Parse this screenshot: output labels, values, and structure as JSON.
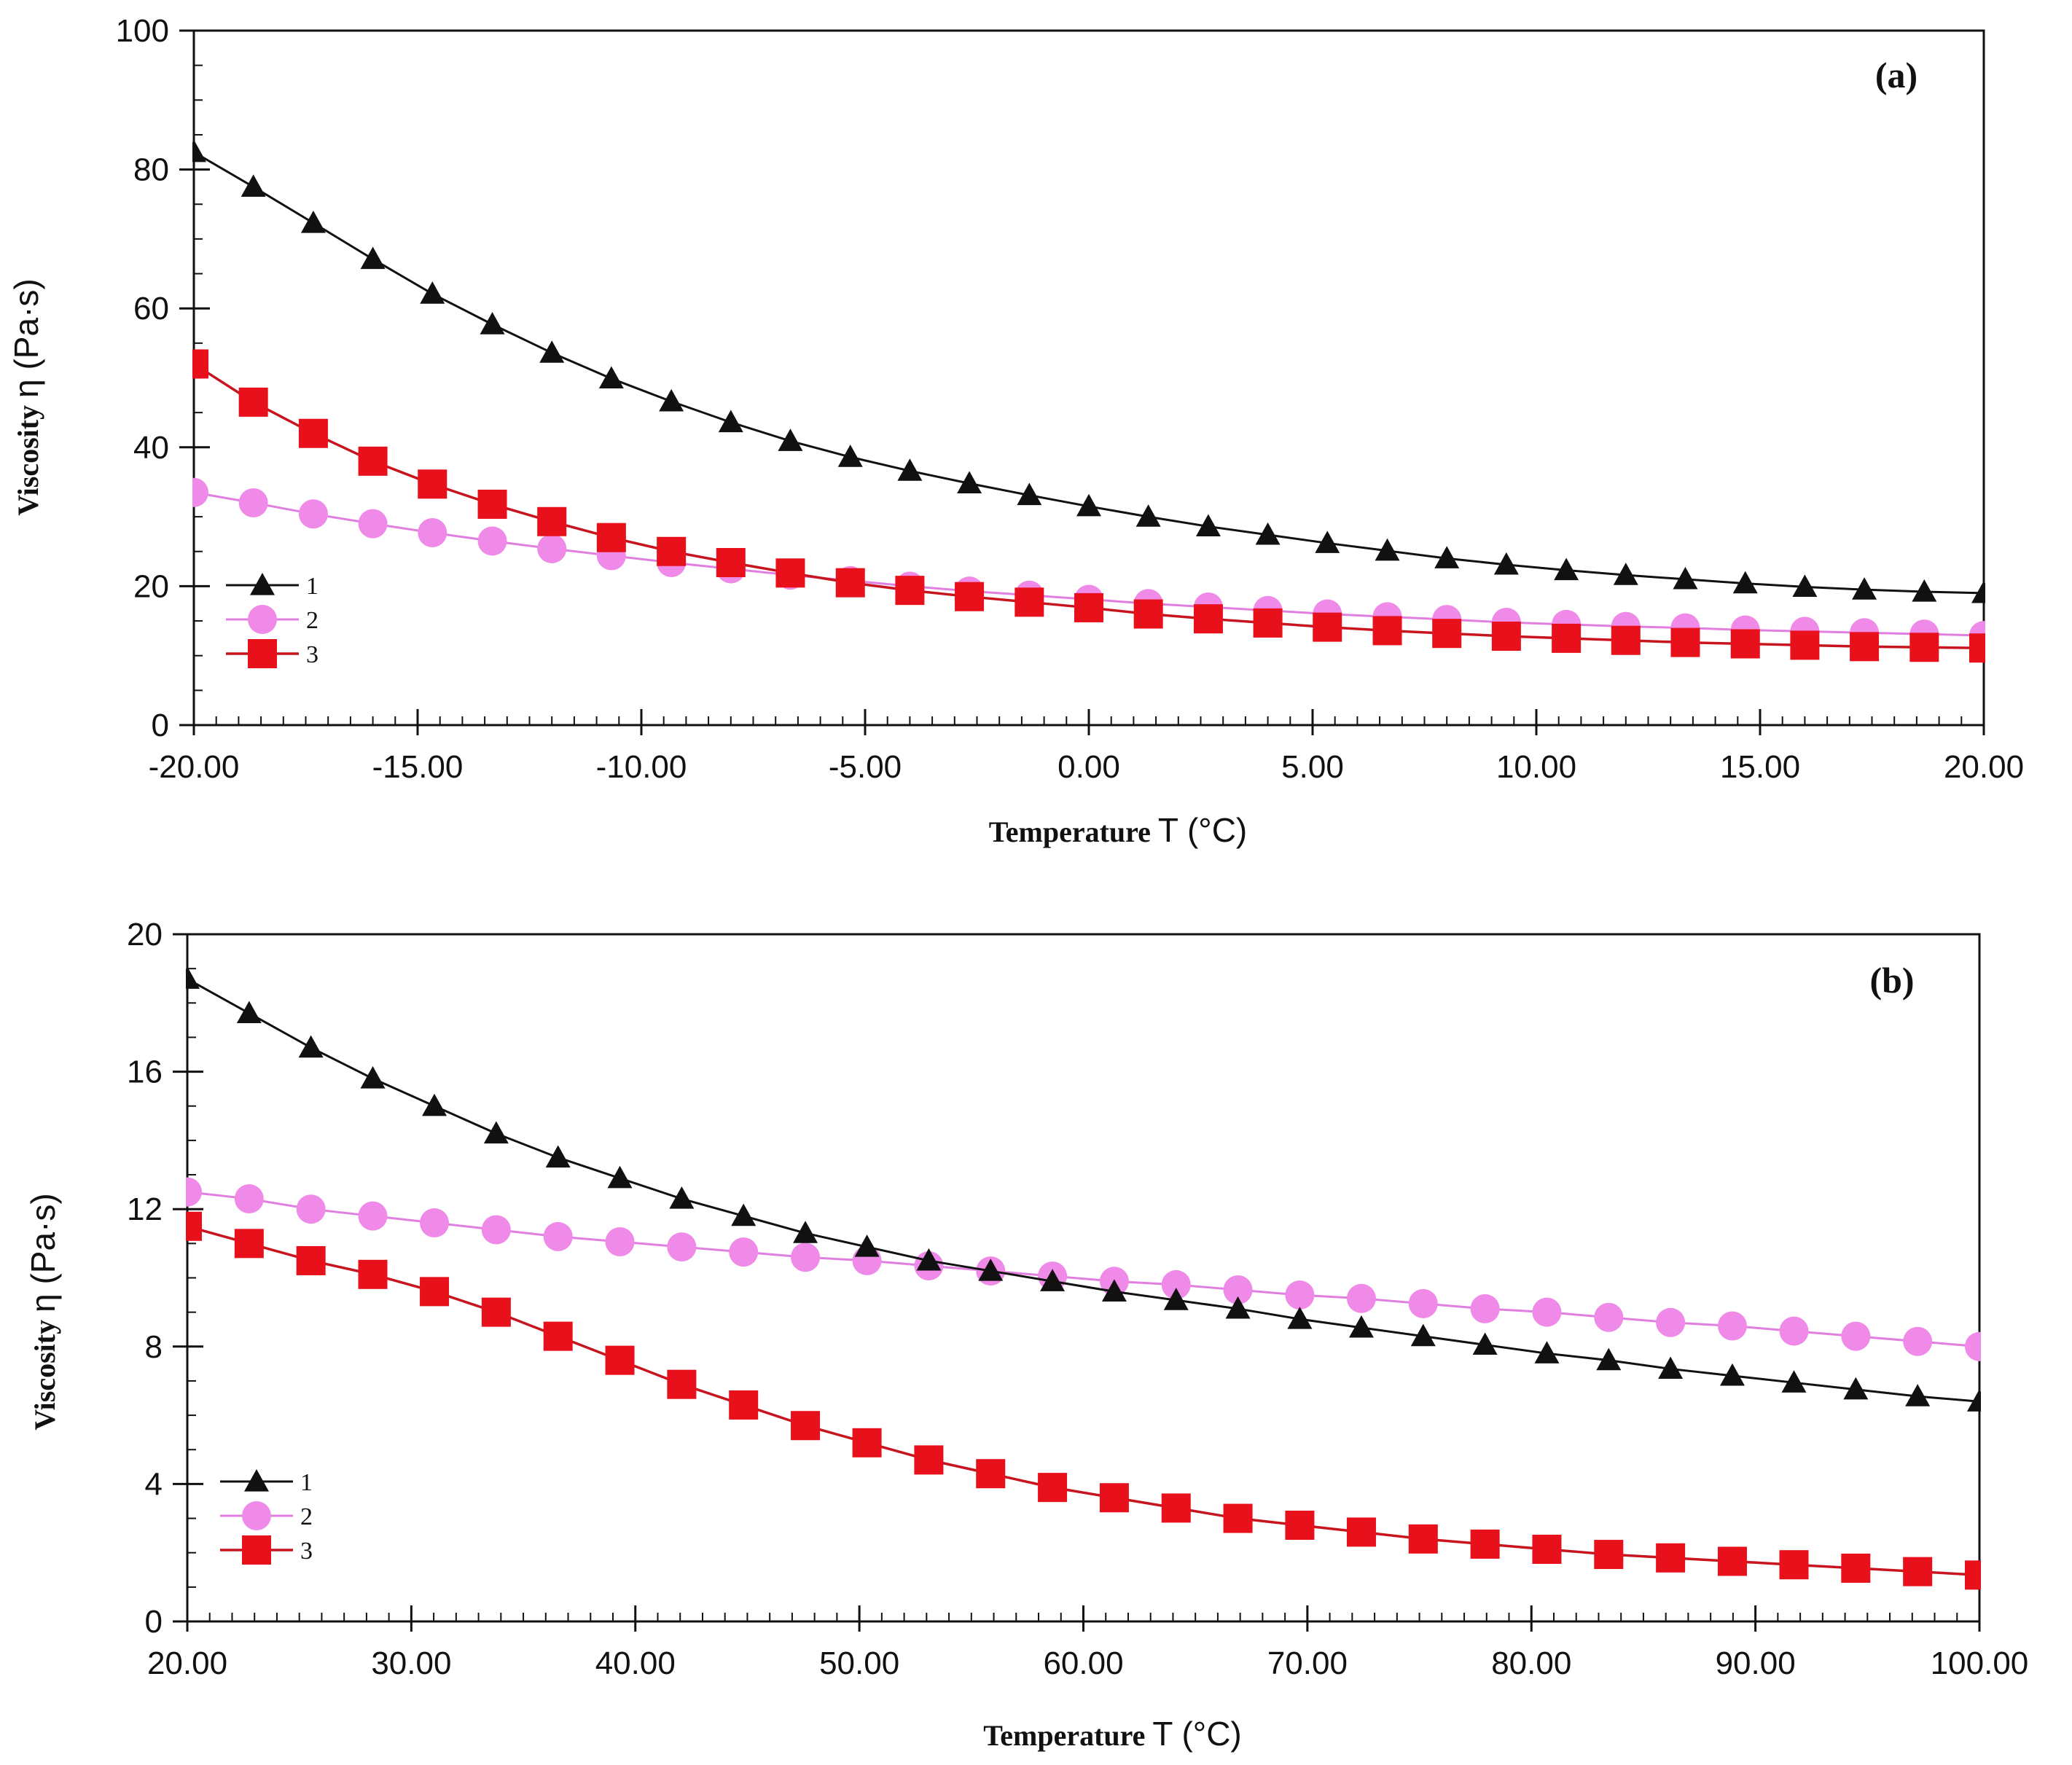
{
  "figure": {
    "colors": {
      "series1": "#111111",
      "series2": "#f08ae8",
      "series2_line": "#e07fe0",
      "series3": "#e8101a",
      "series3_line": "#c8141e",
      "axis": "#111111"
    }
  },
  "chart_data": [
    {
      "type": "line",
      "panel_label": "(a)",
      "xlabel": "Temperature",
      "xlabel_symbol": "T",
      "xlabel_unit": "(°C)",
      "ylabel": "Viscosity",
      "ylabel_symbol": "η",
      "ylabel_unit": "(Pa·s)",
      "xlim": [
        -20,
        20
      ],
      "ylim": [
        0,
        100
      ],
      "x_ticks": [
        -20,
        -15,
        -10,
        -5,
        0,
        5,
        10,
        15,
        20
      ],
      "x_tick_labels": [
        "-20.00",
        "-15.00",
        "-10.00",
        "-5.00",
        "0.00",
        "5.00",
        "10.00",
        "15.00",
        "20.00"
      ],
      "y_ticks": [
        0,
        20,
        40,
        60,
        80,
        100
      ],
      "y_tick_labels": [
        "0",
        "20",
        "40",
        "60",
        "80",
        "100"
      ],
      "x_minor_step": 0.5,
      "y_minor_step": 5,
      "legend_position": "bottom-left",
      "x": [
        -20,
        -18.67,
        -17.33,
        -16,
        -14.67,
        -13.33,
        -12,
        -10.67,
        -9.33,
        -8,
        -6.67,
        -5.33,
        -4,
        -2.67,
        -1.33,
        0,
        1.33,
        2.67,
        4,
        5.33,
        6.67,
        8,
        9.33,
        10.67,
        12,
        13.33,
        14.67,
        16,
        17.33,
        18.67,
        20
      ],
      "series": [
        {
          "name": "1",
          "marker": "triangle",
          "values": [
            82.5,
            77.5,
            72.3,
            67.1,
            62.1,
            57.7,
            53.6,
            49.9,
            46.6,
            43.6,
            40.9,
            38.6,
            36.6,
            34.8,
            33.1,
            31.5,
            30.0,
            28.6,
            27.4,
            26.2,
            25.1,
            24.0,
            23.1,
            22.3,
            21.6,
            21.0,
            20.4,
            19.9,
            19.5,
            19.2,
            19.0
          ]
        },
        {
          "name": "2",
          "marker": "circle",
          "values": [
            33.5,
            32.0,
            30.4,
            29.0,
            27.7,
            26.5,
            25.4,
            24.4,
            23.4,
            22.5,
            21.6,
            20.8,
            20.0,
            19.3,
            18.7,
            18.1,
            17.5,
            17.0,
            16.5,
            16.0,
            15.6,
            15.2,
            14.8,
            14.5,
            14.2,
            14.0,
            13.7,
            13.5,
            13.3,
            13.1,
            12.9
          ]
        },
        {
          "name": "3",
          "marker": "square",
          "values": [
            52.0,
            46.5,
            42.0,
            38.0,
            34.7,
            31.8,
            29.3,
            27.0,
            25.0,
            23.4,
            21.9,
            20.5,
            19.4,
            18.5,
            17.7,
            16.9,
            16.0,
            15.3,
            14.7,
            14.1,
            13.6,
            13.2,
            12.8,
            12.5,
            12.2,
            11.9,
            11.7,
            11.5,
            11.3,
            11.2,
            11.1
          ]
        }
      ]
    },
    {
      "type": "line",
      "panel_label": "(b)",
      "xlabel": "Temperature",
      "xlabel_symbol": "T",
      "xlabel_unit": "(°C)",
      "ylabel": "Viscosity",
      "ylabel_symbol": "η",
      "ylabel_unit": "(Pa·s)",
      "xlim": [
        20,
        100
      ],
      "ylim": [
        0,
        20
      ],
      "x_ticks": [
        20,
        30,
        40,
        50,
        60,
        70,
        80,
        90,
        100
      ],
      "x_tick_labels": [
        "20.00",
        "30.00",
        "40.00",
        "50.00",
        "60.00",
        "70.00",
        "80.00",
        "90.00",
        "100.00"
      ],
      "y_ticks": [
        0,
        4,
        8,
        12,
        16,
        20
      ],
      "y_tick_labels": [
        "0",
        "4",
        "8",
        "12",
        "16",
        "20"
      ],
      "x_minor_step": 1,
      "y_minor_step": 1,
      "legend_position": "bottom-left",
      "x": [
        20,
        22.76,
        25.52,
        28.28,
        31.03,
        33.79,
        36.55,
        39.31,
        42.07,
        44.83,
        47.59,
        50.34,
        53.1,
        55.86,
        58.62,
        61.38,
        64.14,
        66.9,
        69.66,
        72.41,
        75.17,
        77.93,
        80.69,
        83.45,
        86.21,
        88.97,
        91.72,
        94.48,
        97.24,
        100
      ],
      "series": [
        {
          "name": "1",
          "marker": "triangle",
          "values": [
            18.7,
            17.7,
            16.7,
            15.8,
            15.0,
            14.2,
            13.5,
            12.9,
            12.3,
            11.8,
            11.3,
            10.9,
            10.5,
            10.2,
            9.9,
            9.6,
            9.35,
            9.1,
            8.8,
            8.55,
            8.3,
            8.05,
            7.8,
            7.6,
            7.35,
            7.15,
            6.95,
            6.75,
            6.55,
            6.4
          ]
        },
        {
          "name": "2",
          "marker": "circle",
          "values": [
            12.5,
            12.3,
            12.0,
            11.8,
            11.6,
            11.4,
            11.2,
            11.05,
            10.9,
            10.75,
            10.6,
            10.5,
            10.35,
            10.2,
            10.05,
            9.9,
            9.8,
            9.65,
            9.5,
            9.4,
            9.25,
            9.1,
            9.0,
            8.85,
            8.7,
            8.6,
            8.45,
            8.3,
            8.15,
            8.0
          ]
        },
        {
          "name": "3",
          "marker": "square",
          "values": [
            11.5,
            11.0,
            10.5,
            10.1,
            9.6,
            9.0,
            8.3,
            7.6,
            6.9,
            6.3,
            5.7,
            5.2,
            4.7,
            4.3,
            3.9,
            3.6,
            3.3,
            3.0,
            2.8,
            2.6,
            2.4,
            2.25,
            2.1,
            1.95,
            1.85,
            1.75,
            1.65,
            1.55,
            1.45,
            1.35
          ]
        }
      ]
    }
  ]
}
